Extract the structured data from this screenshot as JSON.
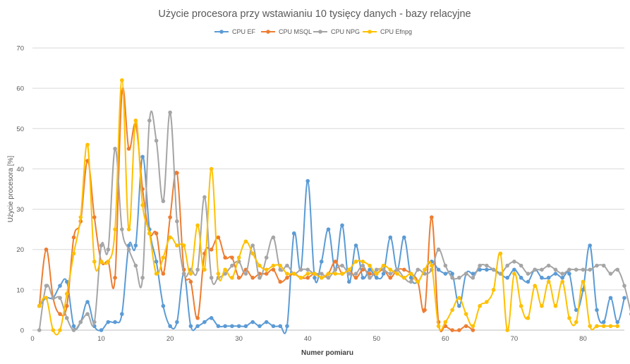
{
  "chart_data": {
    "type": "line",
    "title": "Użycie procesora przy wstawianiu 10 tysięcy danych - bazy relacyjne",
    "xlabel": "Numer pomiaru",
    "ylabel": "Użycie procesora [%]",
    "xlim": [
      0,
      86
    ],
    "ylim": [
      0,
      70
    ],
    "xticks": [
      "0",
      "10",
      "20",
      "30",
      "40",
      "50",
      "60",
      "70",
      "80"
    ],
    "yticks": [
      "0",
      "10",
      "20",
      "30",
      "40",
      "50",
      "60",
      "70"
    ],
    "grid": true,
    "legend_position": "top",
    "series": [
      {
        "name": "CPU EF",
        "color": "#5b9bd5",
        "x_start": 1,
        "values": [
          6,
          8,
          8,
          11,
          12,
          1,
          2,
          7,
          1,
          0,
          2,
          2,
          4,
          21,
          21,
          43,
          25,
          17,
          6,
          1,
          2,
          14,
          1,
          1,
          2,
          3,
          1,
          1,
          1,
          1,
          1,
          2,
          1,
          2,
          1,
          1,
          1,
          24,
          15,
          37,
          13,
          17,
          25,
          15,
          26,
          12,
          21,
          13,
          15,
          13,
          14,
          23,
          15,
          23,
          13,
          12,
          15,
          17,
          15,
          14,
          14,
          6,
          14,
          14,
          15,
          15,
          15,
          14,
          13,
          15,
          13,
          12,
          15,
          13,
          13,
          14,
          13,
          14,
          5,
          10,
          21,
          5,
          2,
          8,
          2,
          8
        ]
      },
      {
        "name": "CPU MSQL",
        "color": "#ed7d31",
        "x_start": 1,
        "values": [
          6,
          20,
          8,
          4,
          6,
          23,
          27,
          42,
          28,
          17,
          17,
          13,
          59,
          45,
          51,
          35,
          24,
          24,
          14,
          28,
          39,
          15,
          12,
          3,
          19,
          20,
          23,
          18,
          18,
          13,
          15,
          13,
          14,
          14,
          15,
          12,
          13,
          14,
          13,
          13,
          14,
          13,
          14,
          17,
          14,
          15,
          13,
          15,
          14,
          14,
          15,
          13,
          15,
          15,
          14,
          12,
          5,
          28,
          2,
          1,
          0,
          0,
          1,
          0
        ]
      },
      {
        "name": "CPU NPG",
        "color": "#a5a5a5",
        "x_start": 1,
        "values": [
          0,
          11,
          8,
          8,
          3,
          0,
          2,
          4,
          2,
          21,
          20,
          45,
          25,
          20,
          16,
          13,
          52,
          47,
          32,
          54,
          27,
          14,
          15,
          15,
          33,
          13,
          13,
          14,
          16,
          17,
          14,
          21,
          13,
          18,
          23,
          15,
          16,
          14,
          15,
          15,
          14,
          14,
          13,
          15,
          16,
          14,
          14,
          16,
          13,
          15,
          15,
          14,
          15,
          13,
          12,
          15,
          14,
          15,
          20,
          16,
          13,
          13,
          14,
          13,
          16,
          16,
          15,
          14,
          16,
          17,
          16,
          14,
          15,
          15,
          16,
          15,
          14,
          15,
          15,
          15,
          15,
          16,
          16,
          14,
          15,
          11,
          4
        ]
      },
      {
        "name": "CPU Efnpg",
        "color": "#ffc000",
        "x_start": 1,
        "values": [
          6,
          8,
          0,
          0,
          9,
          19,
          28,
          46,
          17,
          17,
          17,
          25,
          62,
          25,
          52,
          31,
          24,
          14,
          18,
          23,
          21,
          21,
          14,
          26,
          15,
          40,
          14,
          15,
          13,
          18,
          22,
          19,
          16,
          15,
          16,
          16,
          14,
          14,
          13,
          14,
          14,
          13,
          14,
          14,
          14,
          15,
          17,
          17,
          16,
          14,
          16,
          15,
          14,
          13,
          14,
          12,
          15,
          16,
          1,
          2,
          5,
          8,
          4,
          1,
          6,
          7,
          10,
          19,
          0,
          14,
          6,
          3,
          11,
          6,
          12,
          6,
          12,
          3,
          2,
          12,
          1,
          1,
          1,
          1,
          1
        ]
      }
    ]
  }
}
